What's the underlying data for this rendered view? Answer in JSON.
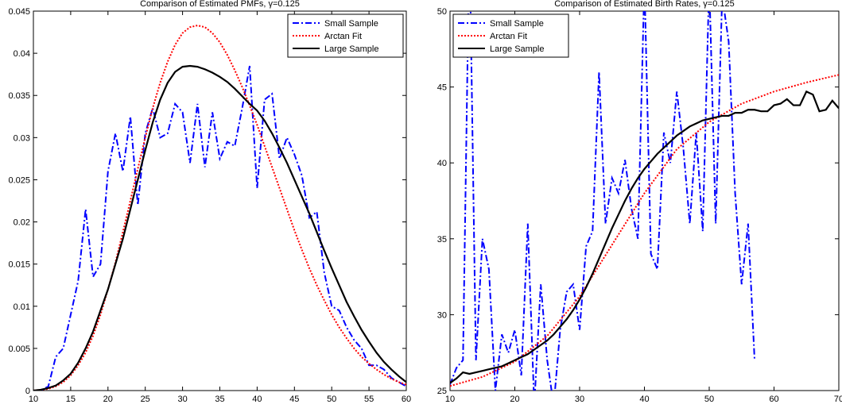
{
  "chart_data": [
    {
      "type": "line",
      "title": "Comparison of Estimated PMFs, γ=0.125",
      "xlim": [
        10,
        60
      ],
      "xticks": [
        10,
        15,
        20,
        25,
        30,
        35,
        40,
        45,
        50,
        55,
        60
      ],
      "ylim": [
        0,
        0.045
      ],
      "yticks": [
        0,
        0.005,
        0.01,
        0.015,
        0.02,
        0.025,
        0.03,
        0.035,
        0.04,
        0.045
      ],
      "legend": "upper right",
      "series": [
        {
          "name": "Small Sample",
          "color": "#0000ff",
          "dash": "dashdot",
          "x": [
            10,
            11,
            12,
            13,
            14,
            15,
            16,
            17,
            18,
            19,
            20,
            21,
            22,
            23,
            24,
            25,
            26,
            27,
            28,
            29,
            30,
            31,
            32,
            33,
            34,
            35,
            36,
            37,
            38,
            39,
            40,
            41,
            42,
            43,
            44,
            45,
            46,
            47,
            48,
            49,
            50,
            51,
            52,
            53,
            54,
            55,
            56,
            57,
            58,
            59,
            60
          ],
          "values": [
            0,
            0,
            0.0005,
            0.004,
            0.005,
            0.009,
            0.013,
            0.0215,
            0.0135,
            0.015,
            0.026,
            0.0305,
            0.026,
            0.0325,
            0.022,
            0.0305,
            0.0335,
            0.03,
            0.0305,
            0.034,
            0.033,
            0.027,
            0.034,
            0.0265,
            0.033,
            0.0275,
            0.0295,
            0.029,
            0.0335,
            0.0385,
            0.024,
            0.0345,
            0.0352,
            0.0275,
            0.03,
            0.028,
            0.0255,
            0.0205,
            0.0212,
            0.014,
            0.01,
            0.0095,
            0.0075,
            0.006,
            0.005,
            0.003,
            0.003,
            0.0025,
            0.0015,
            0.001,
            0.0005
          ]
        },
        {
          "name": "Arctan Fit",
          "color": "#ff0000",
          "dash": "dot",
          "x": [
            10,
            11,
            12,
            13,
            14,
            15,
            16,
            17,
            18,
            19,
            20,
            21,
            22,
            23,
            24,
            25,
            26,
            27,
            28,
            29,
            30,
            31,
            32,
            33,
            34,
            35,
            36,
            37,
            38,
            39,
            40,
            41,
            42,
            43,
            44,
            45,
            46,
            47,
            48,
            49,
            50,
            51,
            52,
            53,
            54,
            55,
            56,
            57,
            58,
            59,
            60
          ],
          "values": [
            0,
            0.0001,
            0.0002,
            0.0005,
            0.001,
            0.0018,
            0.003,
            0.0045,
            0.0065,
            0.009,
            0.012,
            0.0152,
            0.0188,
            0.0225,
            0.0263,
            0.03,
            0.0335,
            0.0365,
            0.039,
            0.041,
            0.0424,
            0.0431,
            0.0433,
            0.0431,
            0.0424,
            0.0413,
            0.0398,
            0.038,
            0.036,
            0.0338,
            0.0315,
            0.029,
            0.0265,
            0.024,
            0.0215,
            0.019,
            0.0167,
            0.0145,
            0.0125,
            0.0107,
            0.009,
            0.0075,
            0.0062,
            0.005,
            0.004,
            0.0032,
            0.0025,
            0.0019,
            0.0014,
            0.001,
            0.0007
          ]
        },
        {
          "name": "Large Sample",
          "color": "#000000",
          "dash": "solid",
          "x": [
            10,
            11,
            12,
            13,
            14,
            15,
            16,
            17,
            18,
            19,
            20,
            21,
            22,
            23,
            24,
            25,
            26,
            27,
            28,
            29,
            30,
            31,
            32,
            33,
            34,
            35,
            36,
            37,
            38,
            39,
            40,
            41,
            42,
            43,
            44,
            45,
            46,
            47,
            48,
            49,
            50,
            51,
            52,
            53,
            54,
            55,
            56,
            57,
            58,
            59,
            60
          ],
          "values": [
            0,
            0.0001,
            0.0003,
            0.0006,
            0.0012,
            0.002,
            0.0033,
            0.005,
            0.007,
            0.0095,
            0.012,
            0.015,
            0.018,
            0.0215,
            0.025,
            0.0285,
            0.0318,
            0.0345,
            0.0365,
            0.0378,
            0.0384,
            0.0385,
            0.0384,
            0.0381,
            0.0377,
            0.0372,
            0.0366,
            0.0358,
            0.0349,
            0.034,
            0.0332,
            0.032,
            0.0305,
            0.0288,
            0.027,
            0.025,
            0.023,
            0.021,
            0.0188,
            0.0166,
            0.0145,
            0.0125,
            0.0105,
            0.0088,
            0.0072,
            0.0058,
            0.0045,
            0.0034,
            0.0025,
            0.0017,
            0.001
          ]
        }
      ]
    },
    {
      "type": "line",
      "title": "Comparison of Estimated Birth Rates, γ=0.125",
      "xlim": [
        10,
        70
      ],
      "xticks": [
        10,
        20,
        30,
        40,
        50,
        60,
        70
      ],
      "ylim": [
        25,
        50
      ],
      "yticks": [
        25,
        30,
        35,
        40,
        45,
        50
      ],
      "legend": "upper left",
      "series": [
        {
          "name": "Small Sample",
          "color": "#0000ff",
          "dash": "dashdot",
          "x": [
            10,
            11,
            12,
            13,
            14,
            15,
            16,
            17,
            18,
            19,
            20,
            21,
            22,
            23,
            24,
            25,
            26,
            27,
            28,
            29,
            30,
            31,
            32,
            33,
            34,
            35,
            36,
            37,
            38,
            39,
            40,
            41,
            42,
            43,
            44,
            45,
            46,
            47,
            48,
            49,
            50,
            51,
            52,
            53,
            54,
            55,
            56,
            57
          ],
          "values": [
            25.4,
            26.5,
            27,
            55,
            27,
            35,
            33,
            25,
            28.7,
            27.5,
            29,
            26,
            36,
            24,
            32,
            27,
            24,
            29,
            31.5,
            32,
            29,
            34.5,
            35.5,
            46,
            36,
            39,
            38,
            40.2,
            37,
            35,
            52,
            34,
            33,
            42,
            40,
            44.7,
            41,
            36,
            42,
            35.5,
            52,
            36,
            51,
            48,
            38,
            32,
            36,
            27
          ]
        },
        {
          "name": "Arctan Fit",
          "color": "#ff0000",
          "dash": "dot",
          "x": [
            10,
            15,
            20,
            25,
            30,
            35,
            40,
            45,
            50,
            55,
            60,
            65,
            70
          ],
          "values": [
            25.3,
            25.9,
            26.9,
            28.6,
            31.2,
            34.6,
            38,
            40.9,
            42.7,
            43.9,
            44.7,
            45.3,
            45.8
          ]
        },
        {
          "name": "Large Sample",
          "color": "#000000",
          "dash": "solid",
          "x": [
            10,
            11,
            12,
            13,
            14,
            15,
            16,
            17,
            18,
            19,
            20,
            21,
            22,
            23,
            24,
            25,
            26,
            27,
            28,
            29,
            30,
            31,
            32,
            33,
            34,
            35,
            36,
            37,
            38,
            39,
            40,
            41,
            42,
            43,
            44,
            45,
            46,
            47,
            48,
            49,
            50,
            51,
            52,
            53,
            54,
            55,
            56,
            57,
            58,
            59,
            60,
            61,
            62,
            63,
            64,
            65,
            66,
            67,
            68,
            69,
            70
          ],
          "values": [
            25.5,
            25.8,
            26.2,
            26.1,
            26.2,
            26.3,
            26.4,
            26.5,
            26.6,
            26.8,
            27,
            27.2,
            27.4,
            27.7,
            28,
            28.3,
            28.7,
            29.2,
            29.7,
            30.3,
            31,
            31.8,
            32.7,
            33.7,
            34.7,
            35.7,
            36.6,
            37.5,
            38.3,
            39,
            39.6,
            40.1,
            40.6,
            41,
            41.4,
            41.8,
            42.1,
            42.4,
            42.6,
            42.8,
            42.9,
            43,
            43.1,
            43.1,
            43.3,
            43.3,
            43.5,
            43.5,
            43.4,
            43.4,
            43.8,
            43.9,
            44.2,
            43.8,
            43.8,
            44.7,
            44.5,
            43.4,
            43.5,
            44.1,
            43.6
          ]
        }
      ]
    }
  ]
}
